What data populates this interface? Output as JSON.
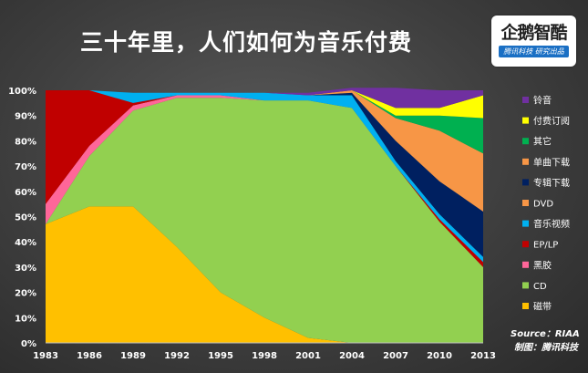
{
  "title": "三十年里，人们如何为音乐付费",
  "logo": {
    "text": "企鹅智酷",
    "tagline": "腾讯科技 研究出品"
  },
  "source": "Source：RIAA",
  "credit": "制图：腾讯科技",
  "chart_data": {
    "type": "area",
    "stacked": true,
    "x": [
      "1983",
      "1986",
      "1989",
      "1992",
      "1995",
      "1998",
      "2001",
      "2004",
      "2007",
      "2010",
      "2013"
    ],
    "ylim": [
      0,
      100
    ],
    "yticks": [
      "0%",
      "10%",
      "20%",
      "30%",
      "40%",
      "50%",
      "60%",
      "70%",
      "80%",
      "90%",
      "100%"
    ],
    "legend_position": "right",
    "series": [
      {
        "name": "磁带",
        "color": "#ffc000",
        "values": [
          47,
          54,
          54,
          38,
          20,
          10,
          2,
          0,
          0,
          0,
          0
        ]
      },
      {
        "name": "CD",
        "color": "#92d050",
        "values": [
          0,
          20,
          38,
          59,
          77,
          86,
          94,
          93,
          70,
          48,
          30
        ]
      },
      {
        "name": "黑胶",
        "color": "#ff6699",
        "values": [
          8,
          4,
          2,
          1,
          1,
          0,
          0,
          0,
          0,
          0,
          0
        ]
      },
      {
        "name": "EP/LP",
        "color": "#c00000",
        "values": [
          45,
          22,
          1,
          0,
          0,
          0,
          0,
          0,
          0,
          1,
          2
        ]
      },
      {
        "name": "音乐视频",
        "color": "#00b0f0",
        "values": [
          0,
          0,
          4,
          1,
          1,
          3,
          2,
          5,
          2,
          2,
          2
        ]
      },
      {
        "name": "DVD",
        "color": "#f79646",
        "values": [
          0,
          0,
          0,
          0,
          0,
          0,
          0,
          0,
          0,
          0,
          0
        ]
      },
      {
        "name": "专辑下载",
        "color": "#002060",
        "values": [
          0,
          0,
          0,
          0,
          0,
          0,
          0,
          1,
          8,
          13,
          18
        ]
      },
      {
        "name": "单曲下载",
        "color": "#f79646",
        "values": [
          0,
          0,
          0,
          0,
          0,
          0,
          0,
          1,
          9,
          20,
          23
        ]
      },
      {
        "name": "其它",
        "color": "#00b050",
        "values": [
          0,
          0,
          0,
          0,
          0,
          0,
          0,
          0,
          1,
          6,
          14
        ]
      },
      {
        "name": "付费订阅",
        "color": "#ffff00",
        "values": [
          0,
          0,
          0,
          0,
          0,
          0,
          0,
          0,
          3,
          3,
          9
        ]
      },
      {
        "name": "铃音",
        "color": "#7030a0",
        "values": [
          0,
          0,
          0,
          0,
          0,
          0,
          1,
          1,
          8,
          7,
          2
        ]
      }
    ],
    "legend_order": [
      "铃音",
      "付费订阅",
      "其它",
      "单曲下载",
      "专辑下载",
      "DVD",
      "音乐视频",
      "EP/LP",
      "黑胶",
      "CD",
      "磁带"
    ]
  }
}
